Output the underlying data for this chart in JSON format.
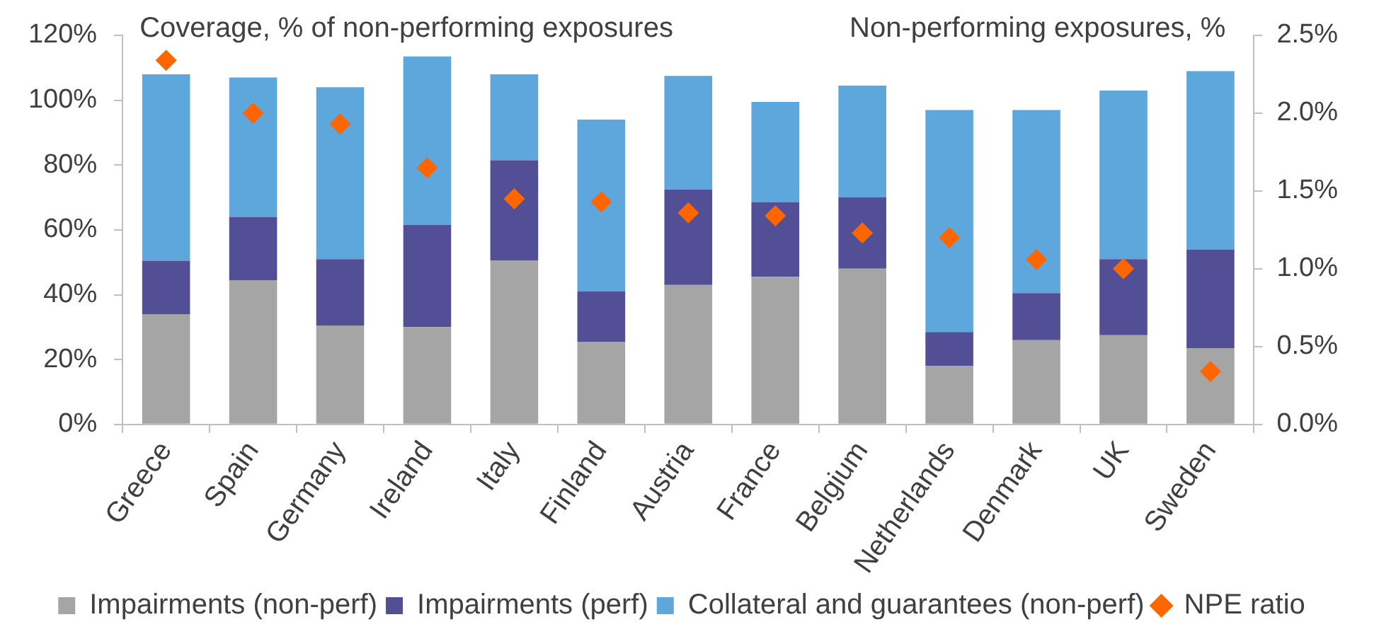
{
  "chart_data": {
    "type": "bar",
    "stacked": true,
    "ylabel": "Coverage, % of non-performing exposures",
    "y2label": "Non-performing exposures, %",
    "categories": [
      "Greece",
      "Spain",
      "Germany",
      "Ireland",
      "Italy",
      "Finland",
      "Austria",
      "France",
      "Belgium",
      "Netherlands",
      "Denmark",
      "UK",
      "Sweden"
    ],
    "series": [
      {
        "name": "Impairments (non-perf)",
        "color": "#a5a5a5",
        "values": [
          34,
          44.5,
          30.5,
          30,
          50.5,
          25.5,
          43,
          45.5,
          48,
          18,
          26,
          27.5,
          23.5
        ]
      },
      {
        "name": "Impairments (perf)",
        "color": "#534f97",
        "values": [
          16.5,
          19.5,
          20.5,
          31.5,
          31,
          15.5,
          29.5,
          23,
          22,
          10.5,
          14.5,
          23.5,
          30.5
        ]
      },
      {
        "name": "Collateral and guarantees (non-perf)",
        "color": "#5ea7dc",
        "values": [
          57.5,
          43,
          53,
          52,
          26.5,
          53,
          35,
          31,
          34.5,
          68.5,
          56.5,
          52,
          55
        ]
      },
      {
        "name": "NPE ratio",
        "type": "scatter",
        "axis": "y2",
        "marker": "diamond",
        "color": "#ff6600",
        "x": [
          "Greece",
          "Spain",
          "Germany",
          "Ireland",
          "Italy",
          "Finland",
          "Austria",
          "France",
          "Belgium",
          "Netherlands",
          "Denmark",
          "UK",
          "Sweden"
        ],
        "values": [
          2.34,
          2.0,
          1.93,
          1.65,
          1.45,
          1.43,
          1.36,
          1.34,
          1.23,
          1.2,
          1.06,
          1.0,
          0.34
        ]
      }
    ],
    "ylim": [
      0,
      120
    ],
    "yticks": [
      {
        "value": 0,
        "label": "0%"
      },
      {
        "value": 20,
        "label": "20%"
      },
      {
        "value": 40,
        "label": "40%"
      },
      {
        "value": 60,
        "label": "60%"
      },
      {
        "value": 80,
        "label": "80%"
      },
      {
        "value": 100,
        "label": "100%"
      },
      {
        "value": 120,
        "label": "120%"
      }
    ],
    "y2lim": [
      0,
      2.5
    ],
    "y2ticks": [
      {
        "value": 0,
        "label": "0.0%"
      },
      {
        "value": 0.5,
        "label": "0.5%"
      },
      {
        "value": 1,
        "label": "1.0%"
      },
      {
        "value": 1.5,
        "label": "1.5%"
      },
      {
        "value": 2,
        "label": "2.0%"
      },
      {
        "value": 2.5,
        "label": "2.5%"
      }
    ],
    "legend": "bottom",
    "grid": false
  }
}
